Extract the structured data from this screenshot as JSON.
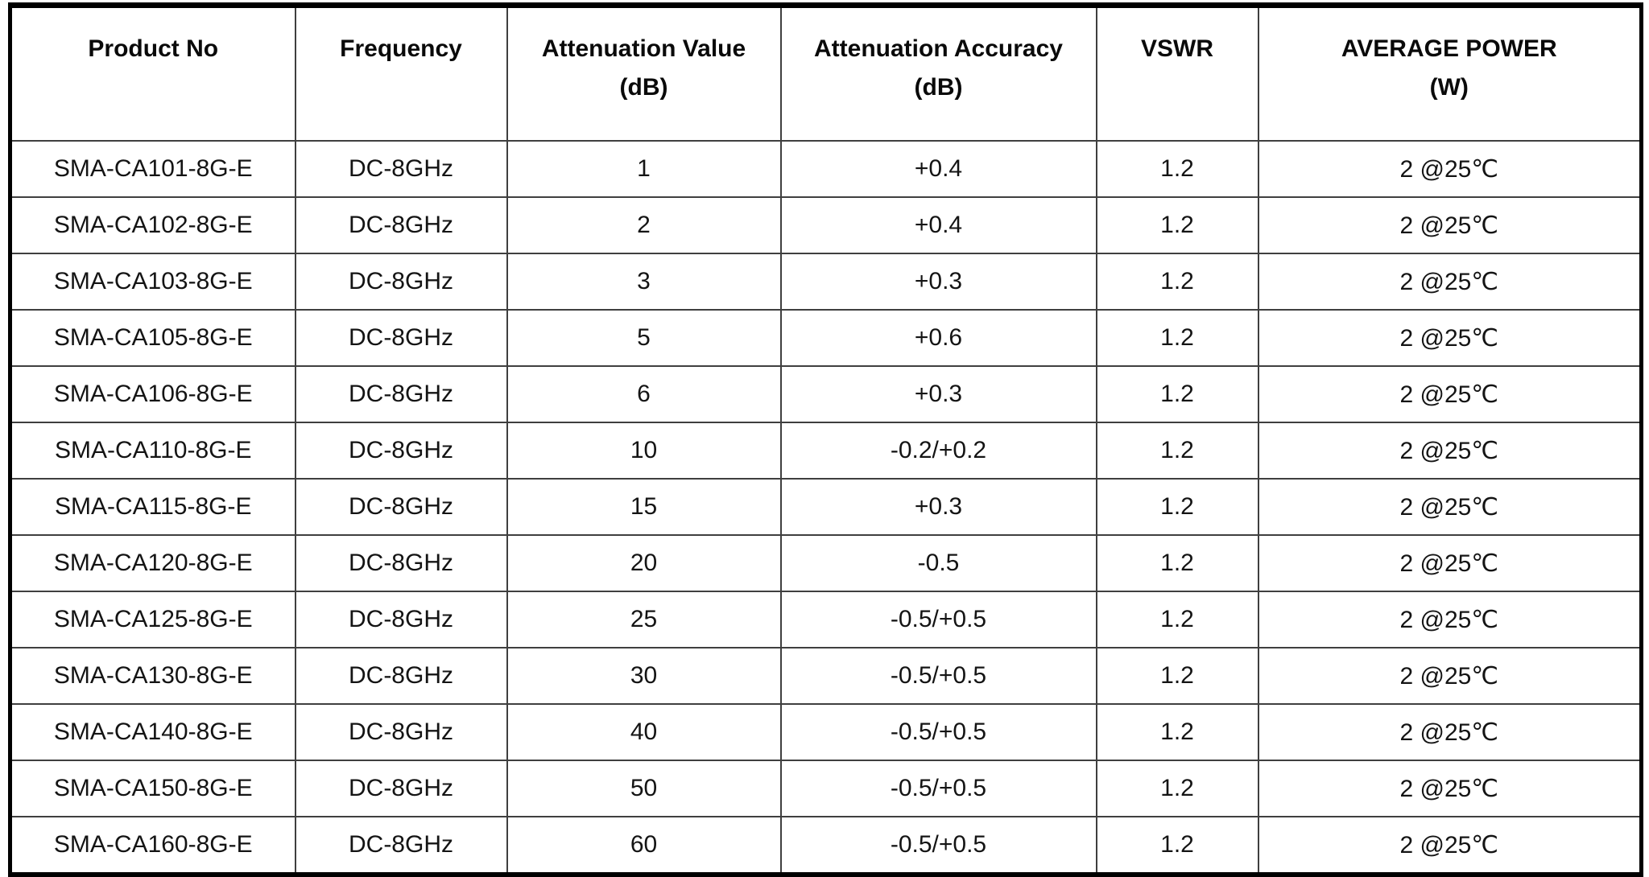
{
  "table": {
    "columns": [
      {
        "key": "product-no",
        "label": "Product No",
        "unit": ""
      },
      {
        "key": "frequency",
        "label": "Frequency",
        "unit": ""
      },
      {
        "key": "attenuation-value",
        "label": "Attenuation Value",
        "unit": "(dB)"
      },
      {
        "key": "attenuation-accuracy",
        "label": "Attenuation Accuracy",
        "unit": "(dB)"
      },
      {
        "key": "vswr",
        "label": "VSWR",
        "unit": ""
      },
      {
        "key": "average-power",
        "label": "AVERAGE POWER",
        "unit": "(W)"
      }
    ],
    "rows": [
      [
        "SMA-CA101-8G-E",
        "DC-8GHz",
        "1",
        "+0.4",
        "1.2",
        "2 @25℃"
      ],
      [
        "SMA-CA102-8G-E",
        "DC-8GHz",
        "2",
        "+0.4",
        "1.2",
        "2 @25℃"
      ],
      [
        "SMA-CA103-8G-E",
        "DC-8GHz",
        "3",
        "+0.3",
        "1.2",
        "2 @25℃"
      ],
      [
        "SMA-CA105-8G-E",
        "DC-8GHz",
        "5",
        "+0.6",
        "1.2",
        "2 @25℃"
      ],
      [
        "SMA-CA106-8G-E",
        "DC-8GHz",
        "6",
        "+0.3",
        "1.2",
        "2 @25℃"
      ],
      [
        "SMA-CA110-8G-E",
        "DC-8GHz",
        "10",
        "-0.2/+0.2",
        "1.2",
        "2 @25℃"
      ],
      [
        "SMA-CA115-8G-E",
        "DC-8GHz",
        "15",
        "+0.3",
        "1.2",
        "2 @25℃"
      ],
      [
        "SMA-CA120-8G-E",
        "DC-8GHz",
        "20",
        "-0.5",
        "1.2",
        "2 @25℃"
      ],
      [
        "SMA-CA125-8G-E",
        "DC-8GHz",
        "25",
        "-0.5/+0.5",
        "1.2",
        "2 @25℃"
      ],
      [
        "SMA-CA130-8G-E",
        "DC-8GHz",
        "30",
        "-0.5/+0.5",
        "1.2",
        "2 @25℃"
      ],
      [
        "SMA-CA140-8G-E",
        "DC-8GHz",
        "40",
        "-0.5/+0.5",
        "1.2",
        "2 @25℃"
      ],
      [
        "SMA-CA150-8G-E",
        "DC-8GHz",
        "50",
        "-0.5/+0.5",
        "1.2",
        "2 @25℃"
      ],
      [
        "SMA-CA160-8G-E",
        "DC-8GHz",
        "60",
        "-0.5/+0.5",
        "1.2",
        "2 @25℃"
      ]
    ],
    "colors": {
      "outer_border": "#000000",
      "grid_line": "#3f3f3f",
      "text": "#141414",
      "background": "#ffffff"
    }
  }
}
